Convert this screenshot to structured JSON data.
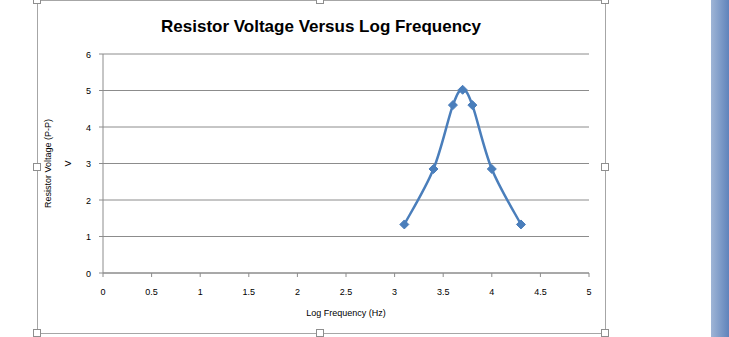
{
  "chart_data": {
    "type": "line",
    "title": "Resistor Voltage Versus Log Frequency",
    "x_label": "Log Frequency (Hz)",
    "y_label": [
      "Resistor Voltage (P-P)",
      "V"
    ],
    "x": [
      3.1,
      3.4,
      3.6,
      3.7,
      3.8,
      4.0,
      4.3
    ],
    "values": [
      1.33,
      2.85,
      4.6,
      5.02,
      4.6,
      2.85,
      1.33
    ],
    "color": "#4a7ebb",
    "marker": "diamond",
    "line_style": "smooth",
    "xlim": [
      0,
      5
    ],
    "xticks": [
      0,
      0.5,
      1,
      1.5,
      2,
      2.5,
      3,
      3.5,
      4,
      4.5,
      5
    ],
    "ylim": [
      0,
      6
    ],
    "yticks": [
      0,
      1,
      2,
      3,
      4,
      5,
      6
    ],
    "grid": true
  }
}
